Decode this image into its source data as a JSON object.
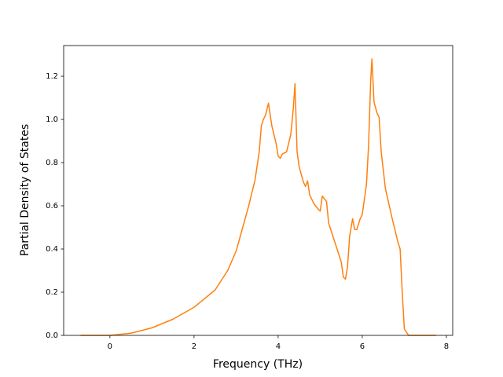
{
  "chart_data": {
    "type": "line",
    "x_label": "Frequency (THz)",
    "y_label": "Partial Density of States",
    "color": "#ff7f0e",
    "x": [
      -0.7,
      0,
      0.5,
      1,
      1.5,
      2,
      2.5,
      2.8,
      3.0,
      3.2,
      3.3,
      3.45,
      3.55,
      3.6,
      3.65,
      3.7,
      3.77,
      3.85,
      3.95,
      4.0,
      4.05,
      4.1,
      4.2,
      4.3,
      4.36,
      4.4,
      4.45,
      4.5,
      4.6,
      4.65,
      4.7,
      4.75,
      4.85,
      4.95,
      5.0,
      5.05,
      5.15,
      5.2,
      5.3,
      5.4,
      5.5,
      5.55,
      5.6,
      5.65,
      5.7,
      5.77,
      5.82,
      5.87,
      5.95,
      6.0,
      6.1,
      6.15,
      6.2,
      6.23,
      6.28,
      6.35,
      6.4,
      6.45,
      6.55,
      6.7,
      6.85,
      6.9,
      6.95,
      7.0,
      7.1,
      7.75
    ],
    "values": [
      0,
      0,
      0.01,
      0.035,
      0.075,
      0.13,
      0.21,
      0.3,
      0.39,
      0.53,
      0.6,
      0.72,
      0.85,
      0.97,
      1.0,
      1.02,
      1.075,
      0.97,
      0.89,
      0.83,
      0.82,
      0.84,
      0.85,
      0.93,
      1.05,
      1.165,
      0.85,
      0.78,
      0.71,
      0.69,
      0.715,
      0.65,
      0.61,
      0.585,
      0.575,
      0.645,
      0.62,
      0.52,
      0.46,
      0.4,
      0.34,
      0.27,
      0.26,
      0.32,
      0.46,
      0.54,
      0.49,
      0.49,
      0.54,
      0.56,
      0.7,
      0.88,
      1.18,
      1.28,
      1.08,
      1.03,
      1.01,
      0.85,
      0.68,
      0.55,
      0.43,
      0.4,
      0.2,
      0.03,
      0,
      0
    ],
    "xlim": [
      -1.1,
      8.15
    ],
    "ylim": [
      0,
      1.342
    ],
    "xticks": [
      0,
      2,
      4,
      6,
      8
    ],
    "yticks": [
      {
        "value": 0,
        "label": "0.0"
      },
      0.2,
      0.4,
      0.6,
      0.8,
      {
        "value": 1,
        "label": "1.0"
      },
      1.2
    ]
  }
}
